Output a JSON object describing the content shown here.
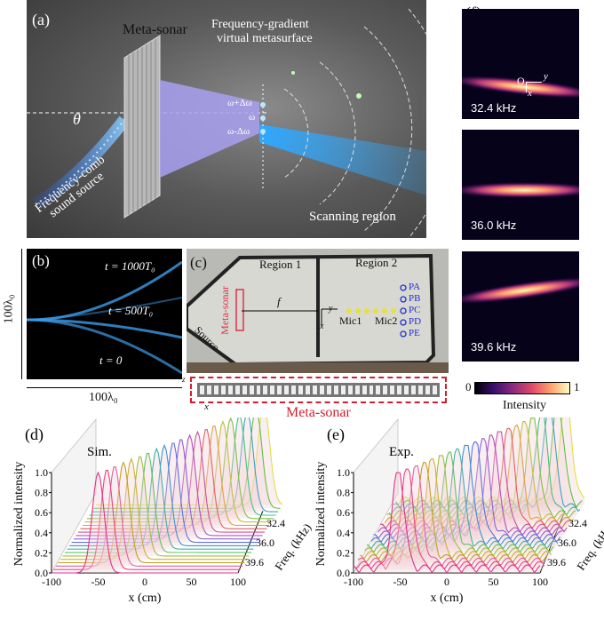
{
  "panel_a": {
    "label": "(a)",
    "meta_sonar": "Meta-sonar",
    "virtual_metasurface": [
      "Frequency-gradient",
      "virtual metasurface"
    ],
    "omega_plus": "ω+Δω",
    "omega": "ω",
    "omega_minus": "ω-Δω",
    "theta": "θ",
    "source": [
      "Frequency-comb",
      "sound source"
    ],
    "scanning_region": "Scanning region"
  },
  "panel_b": {
    "label": "(b)",
    "t1000": "t = 1000T₀",
    "t500": "t = 500T₀",
    "t0": "t = 0",
    "y_axis": "100λ₀",
    "x_axis": "100λ₀"
  },
  "panel_c": {
    "label": "(c)",
    "region1": "Region 1",
    "region2": "Region 2",
    "f": "f",
    "meta_sonar_vertical": "Meta-sonar",
    "source": "Source",
    "mic1": "Mic1",
    "mic2": "Mic2",
    "axis_x": "x",
    "axis_y": "y",
    "probes": [
      "PA",
      "PB",
      "PC",
      "PD",
      "PE"
    ],
    "strip_label": "Meta-sonar",
    "strip_axis_z": "z",
    "strip_axis_x": "x"
  },
  "panel_f": {
    "label": "(f)",
    "origin": "O",
    "axis_y": "y",
    "axis_x": "x",
    "maps": [
      {
        "freq": "32.4 kHz",
        "beam_tilt": "down"
      },
      {
        "freq": "36.0 kHz",
        "beam_tilt": "flat"
      },
      {
        "freq": "39.6 kHz",
        "beam_tilt": "up"
      }
    ],
    "colorbar_min": "0",
    "colorbar_max": "1",
    "colorbar_label": "Intensity",
    "colormap": [
      "#000004",
      "#3b0f70",
      "#8c2981",
      "#de4968",
      "#fe9f6d",
      "#fcfdbf"
    ]
  },
  "chart_data": [
    {
      "type": "line",
      "panel": "(d)",
      "annotation": "Sim.",
      "xlabel": "x (cm)",
      "ylabel": "Normalized intensity",
      "zlabel": "Freq. (kHz)",
      "xlim": [
        -100,
        100
      ],
      "ylim": [
        0,
        1.0
      ],
      "x_ticks": [
        "-100",
        "-50",
        "0",
        "50",
        "100"
      ],
      "y_ticks": [
        "0.0",
        "0.2",
        "0.4",
        "0.6",
        "0.8",
        "1.0"
      ],
      "z_ticks": [
        "32.4",
        "36.0",
        "39.6"
      ],
      "peak_x_cm_from_39_6_to_32_4": [
        -50,
        -43,
        -37,
        -30,
        -24,
        -17,
        -11,
        -4,
        2,
        9,
        15,
        22,
        28,
        35,
        41,
        48,
        54,
        61,
        67,
        74,
        80
      ],
      "peak_value": 1.0
    },
    {
      "type": "line",
      "panel": "(e)",
      "annotation": "Exp.",
      "xlabel": "x (cm)",
      "ylabel": "Normalized intensity",
      "zlabel": "Freq. (kHz)",
      "xlim": [
        -100,
        100
      ],
      "ylim": [
        0,
        1.0
      ],
      "x_ticks": [
        "-100",
        "-50",
        "0",
        "50",
        "100"
      ],
      "y_ticks": [
        "0.0",
        "0.2",
        "0.4",
        "0.6",
        "0.8",
        "1.0"
      ],
      "z_ticks": [
        "32.4",
        "36.0",
        "39.6"
      ],
      "peak_x_cm_from_39_6_to_32_4": [
        -52,
        -45,
        -38,
        -31,
        -25,
        -18,
        -12,
        -5,
        2,
        9,
        15,
        22,
        28,
        35,
        41,
        48,
        54,
        61,
        67,
        74,
        80
      ],
      "peak_value": 1.0
    }
  ]
}
